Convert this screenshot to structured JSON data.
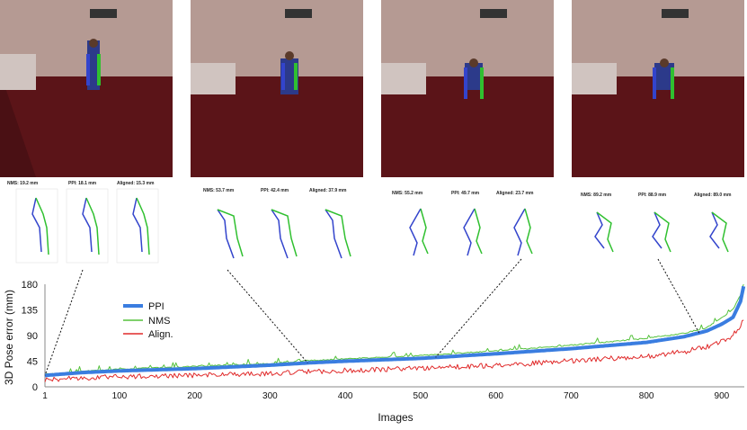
{
  "panels": [
    {
      "titles": [
        "NMS: 19.2 mm",
        "PPI: 18.1 mm",
        "Aligned: 15.3 mm"
      ],
      "image_index": 1
    },
    {
      "titles": [
        "NMS: 53.7 mm",
        "PPI: 42.4 mm",
        "Aligned: 37.9 mm"
      ],
      "image_index": 350
    },
    {
      "titles": [
        "NMS: 55.2 mm",
        "PPI: 49.7 mm",
        "Aligned: 23.7 mm"
      ],
      "image_index": 520
    },
    {
      "titles": [
        "NMS: 89.2 mm",
        "PPI: 88.9 mm",
        "Aligned: 89.0 mm"
      ],
      "image_index": 870
    }
  ],
  "chart_data": {
    "type": "line",
    "xlabel": "Images",
    "ylabel": "3D Pose error (mm)",
    "xlim": [
      1,
      930
    ],
    "ylim": [
      0,
      180
    ],
    "xticks": [
      1,
      100,
      200,
      300,
      400,
      500,
      600,
      700,
      800,
      900
    ],
    "yticks": [
      0,
      45,
      90,
      135,
      180
    ],
    "legend_position": "upper-left",
    "series": [
      {
        "name": "PPI",
        "color": "#3a7de0",
        "points": [
          [
            1,
            20
          ],
          [
            50,
            25
          ],
          [
            100,
            28
          ],
          [
            200,
            32
          ],
          [
            300,
            38
          ],
          [
            350,
            42
          ],
          [
            400,
            45
          ],
          [
            500,
            50
          ],
          [
            600,
            58
          ],
          [
            700,
            67
          ],
          [
            800,
            78
          ],
          [
            850,
            88
          ],
          [
            880,
            98
          ],
          [
            900,
            110
          ],
          [
            915,
            122
          ],
          [
            925,
            150
          ],
          [
            930,
            183
          ]
        ]
      },
      {
        "name": "NMS",
        "color": "#55c23c",
        "points": [
          [
            1,
            21
          ],
          [
            50,
            26
          ],
          [
            100,
            30
          ],
          [
            200,
            35
          ],
          [
            300,
            40
          ],
          [
            350,
            45
          ],
          [
            400,
            48
          ],
          [
            500,
            54
          ],
          [
            600,
            62
          ],
          [
            700,
            72
          ],
          [
            800,
            84
          ],
          [
            850,
            93
          ],
          [
            880,
            103
          ],
          [
            900,
            120
          ],
          [
            915,
            135
          ],
          [
            925,
            160
          ],
          [
            930,
            190
          ]
        ]
      },
      {
        "name": "Align.",
        "color": "#e02a2a",
        "points": [
          [
            1,
            16
          ],
          [
            50,
            20
          ],
          [
            100,
            22
          ],
          [
            200,
            25
          ],
          [
            300,
            28
          ],
          [
            350,
            31
          ],
          [
            400,
            33
          ],
          [
            500,
            37
          ],
          [
            600,
            42
          ],
          [
            700,
            50
          ],
          [
            800,
            58
          ],
          [
            850,
            66
          ],
          [
            880,
            75
          ],
          [
            900,
            84
          ],
          [
            915,
            95
          ],
          [
            925,
            110
          ],
          [
            930,
            125
          ]
        ]
      }
    ]
  }
}
